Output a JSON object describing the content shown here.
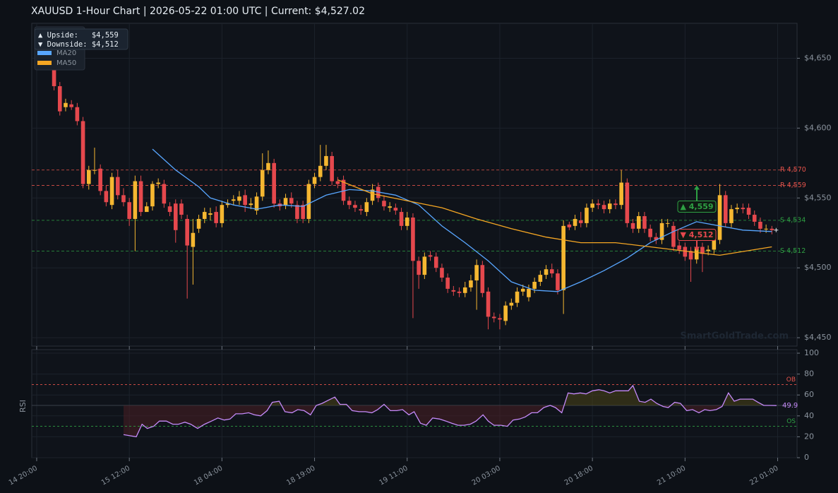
{
  "chart_data": [
    {
      "type": "candlestick",
      "title": "XAUUSD  1-Hour Chart  |  2026-05-22 01:00 UTC  |  Current: $4,527.02",
      "categories": [
        "14 20:00",
        null,
        null,
        null,
        null,
        null,
        null,
        null,
        null,
        null,
        null,
        null,
        null,
        null,
        null,
        null,
        "15 12:00",
        null,
        null,
        null,
        null,
        null,
        null,
        null,
        null,
        null,
        null,
        null,
        null,
        null,
        null,
        null,
        "18 04:00",
        null,
        null,
        null,
        null,
        null,
        null,
        null,
        null,
        null,
        null,
        null,
        null,
        null,
        null,
        null,
        "18 19:00",
        null,
        null,
        null,
        null,
        null,
        null,
        null,
        null,
        null,
        null,
        null,
        null,
        null,
        null,
        null,
        "19 11:00",
        null,
        null,
        null,
        null,
        null,
        null,
        null,
        null,
        null,
        null,
        null,
        null,
        null,
        null,
        null,
        "20 03:00",
        null,
        null,
        null,
        null,
        null,
        null,
        null,
        null,
        null,
        null,
        null,
        null,
        null,
        null,
        null,
        "20 18:00",
        null,
        null,
        null,
        null,
        null,
        null,
        null,
        null,
        null,
        null,
        null,
        null,
        null,
        null,
        null,
        "21 10:00",
        null,
        null,
        null,
        null,
        null,
        null,
        null,
        null,
        null,
        null,
        null,
        null,
        null,
        null,
        null,
        "22 01:00"
      ],
      "open": [
        null,
        null,
        null,
        4655,
        4630,
        4615,
        4617,
        4615,
        4605,
        4560,
        4570,
        4571,
        4555,
        4545,
        4565,
        4552,
        4547,
        4535,
        4562,
        4540,
        4544,
        4560,
        4560,
        4544,
        4546,
        4546,
        4535,
        4515,
        4528,
        4535,
        4538,
        4540,
        4532,
        4545,
        4548,
        4548,
        4552,
        4545,
        4541,
        4551,
        4570,
        4575,
        4546,
        4545,
        4550,
        4545,
        4545,
        4535,
        4560,
        4565,
        4573,
        4580,
        4562,
        4563,
        4548,
        4545,
        4542,
        4540,
        4548,
        4558,
        4548,
        4543,
        4543,
        4540,
        4530,
        4536,
        4505,
        4495,
        4509,
        4508,
        4500,
        4493,
        4484,
        4483,
        4482,
        4486,
        4491,
        4502,
        4483,
        4465,
        4464,
        4462,
        4473,
        4475,
        4483,
        4479,
        4485,
        4490,
        4495,
        4499,
        4496,
        4484,
        4531,
        4530,
        4534,
        4532,
        4543,
        4546,
        4545,
        4542,
        4546,
        4545,
        4561,
        4532,
        4528,
        4537,
        4528,
        4522,
        4520,
        4532,
        4530,
        4516,
        4515,
        4512,
        4506,
        4515,
        4512,
        4513,
        4520,
        4552,
        4532,
        4542,
        4543,
        4543,
        4538,
        4533,
        4528,
        4528,
        null
      ],
      "high": [
        null,
        null,
        null,
        4660,
        4633,
        4621,
        4620,
        4618,
        4608,
        4573,
        4586,
        4574,
        4559,
        4568,
        4570,
        4557,
        4550,
        4566,
        4566,
        4547,
        4562,
        4564,
        4563,
        4547,
        4549,
        4549,
        4538,
        4535,
        4538,
        4543,
        4543,
        4544,
        4548,
        4549,
        4552,
        4555,
        4556,
        4550,
        4554,
        4582,
        4584,
        4578,
        4549,
        4553,
        4554,
        4548,
        4548,
        4563,
        4568,
        4588,
        4588,
        4583,
        4565,
        4566,
        4551,
        4548,
        4545,
        4550,
        4560,
        4561,
        4552,
        4547,
        4546,
        4543,
        4540,
        4539,
        4508,
        4511,
        4512,
        4511,
        4503,
        4496,
        4487,
        4486,
        4490,
        4495,
        4506,
        4505,
        4486,
        4468,
        4467,
        4476,
        4478,
        4486,
        4488,
        4488,
        4493,
        4498,
        4502,
        4503,
        4499,
        4534,
        4533,
        4538,
        4540,
        4546,
        4549,
        4549,
        4548,
        4549,
        4549,
        4570,
        4564,
        4535,
        4540,
        4540,
        4531,
        4525,
        4535,
        4535,
        4533,
        4519,
        4518,
        4515,
        4518,
        4518,
        4516,
        4523,
        4560,
        4555,
        4545,
        4546,
        4546,
        4546,
        4541,
        4536,
        4531,
        4530,
        null
      ],
      "low": [
        null,
        null,
        null,
        4627,
        4609,
        4612,
        4613,
        4602,
        4557,
        4556,
        4567,
        4552,
        4544,
        4542,
        4549,
        4544,
        4530,
        4512,
        4537,
        4541,
        4541,
        4557,
        4543,
        4537,
        4518,
        4535,
        4478,
        4488,
        4525,
        4532,
        4534,
        4529,
        4529,
        4543,
        4545,
        4545,
        4540,
        4542,
        4538,
        4548,
        4567,
        4543,
        4541,
        4542,
        4543,
        4532,
        4532,
        4532,
        4557,
        4562,
        4570,
        4559,
        4557,
        4545,
        4542,
        4540,
        4538,
        4537,
        4545,
        4547,
        4541,
        4540,
        4538,
        4527,
        4527,
        4464,
        4485,
        4492,
        4505,
        4497,
        4490,
        4482,
        4480,
        4479,
        4479,
        4483,
        4470,
        4479,
        4456,
        4461,
        4456,
        4459,
        4470,
        4472,
        4480,
        4476,
        4482,
        4487,
        4492,
        4493,
        4481,
        4467,
        4527,
        4527,
        4529,
        4529,
        4540,
        4542,
        4539,
        4539,
        4542,
        4542,
        4529,
        4525,
        4525,
        4525,
        4519,
        4517,
        4517,
        4529,
        4512,
        4510,
        4505,
        4490,
        4503,
        4497,
        4509,
        4510,
        4517,
        4529,
        4529,
        4539,
        4539,
        4535,
        4530,
        4525,
        4525,
        4524,
        null
      ],
      "close": [
        null,
        null,
        null,
        4630,
        4612,
        4618,
        4615,
        4605,
        4560,
        4570,
        4570,
        4555,
        4547,
        4565,
        4552,
        4547,
        4535,
        4562,
        4540,
        4544,
        4560,
        4561,
        4546,
        4540,
        4527,
        4538,
        4516,
        4525,
        4535,
        4540,
        4539,
        4532,
        4545,
        4546,
        4549,
        4551,
        4545,
        4546,
        4551,
        4570,
        4575,
        4546,
        4544,
        4550,
        4546,
        4535,
        4535,
        4560,
        4565,
        4573,
        4580,
        4562,
        4560,
        4548,
        4545,
        4543,
        4541,
        4547,
        4556,
        4550,
        4544,
        4544,
        4541,
        4530,
        4536,
        4505,
        4495,
        4508,
        4508,
        4500,
        4493,
        4485,
        4483,
        4482,
        4486,
        4491,
        4502,
        4482,
        4465,
        4464,
        4463,
        4473,
        4475,
        4483,
        4485,
        4485,
        4490,
        4495,
        4499,
        4496,
        4484,
        4530,
        4529,
        4535,
        4532,
        4543,
        4546,
        4545,
        4542,
        4546,
        4545,
        4561,
        4532,
        4528,
        4537,
        4528,
        4522,
        4520,
        4532,
        4532,
        4515,
        4513,
        4508,
        4506,
        4515,
        4510,
        4513,
        4520,
        4552,
        4532,
        4542,
        4543,
        4542,
        4538,
        4533,
        4528,
        4528,
        4527,
        null
      ],
      "up_color": "#f5b731",
      "down_color": "#e5484d",
      "ylim": [
        4444,
        4675
      ],
      "yticks": [
        {
          "value": 4450,
          "label": "$4,450"
        },
        {
          "value": 4500,
          "label": "$4,500"
        },
        {
          "value": 4550,
          "label": "$4,550"
        },
        {
          "value": 4600,
          "label": "$4,600"
        },
        {
          "value": 4650,
          "label": "$4,650"
        }
      ],
      "grid": true,
      "series": [
        {
          "name": "MA20",
          "color": "#58a6ff",
          "x": [
            20,
            24,
            28,
            30,
            34,
            38,
            42,
            46,
            50,
            54,
            58,
            62,
            66,
            70,
            74,
            78,
            82,
            86,
            90,
            94,
            98,
            102,
            106,
            110,
            114,
            118,
            122,
            127
          ],
          "values": [
            4585,
            4570,
            4558,
            4550,
            4545,
            4542,
            4545,
            4544,
            4552,
            4556,
            4555,
            4552,
            4545,
            4530,
            4518,
            4505,
            4490,
            4484,
            4483,
            4490,
            4498,
            4507,
            4518,
            4526,
            4533,
            4530,
            4527,
            4526
          ]
        },
        {
          "name": "MA50",
          "color": "#f5a623",
          "x": [
            52,
            58,
            64,
            70,
            76,
            82,
            88,
            94,
            100,
            106,
            112,
            118,
            127
          ],
          "values": [
            4563,
            4553,
            4548,
            4543,
            4535,
            4528,
            4522,
            4518,
            4518,
            4515,
            4512,
            4509,
            4515
          ]
        }
      ],
      "levels": [
        {
          "label": "R 4,570",
          "value": 4570,
          "color": "#e5534b"
        },
        {
          "label": "R 4,559",
          "value": 4559,
          "color": "#e5534b"
        },
        {
          "label": "S 4,534",
          "value": 4534,
          "color": "#2ea043"
        },
        {
          "label": "S 4,512",
          "value": 4512,
          "color": "#2ea043"
        }
      ],
      "annotations": [
        {
          "label": "▲ 4,559",
          "value": 4559,
          "color": "#2ea043"
        },
        {
          "label": "▼ 4,512",
          "value": 4512,
          "color": "#e5484d"
        }
      ],
      "info": [
        "▲ Upside:   $4,559",
        "▼ Downside: $4,512"
      ],
      "watermark": "SmartGoldTrade.com"
    },
    {
      "type": "line",
      "ylabel": "RSI",
      "xlim": [
        -0.85,
        131.35
      ],
      "ylim": [
        0,
        103.4
      ],
      "yticks": [
        0,
        20,
        40,
        60,
        80,
        100
      ],
      "mid": 50,
      "levels": [
        {
          "label": "OB",
          "value": 70,
          "color": "#e5534b"
        },
        {
          "label": "OS",
          "value": 30,
          "color": "#2ea043"
        }
      ],
      "series": [
        {
          "name": "RSI",
          "color": "#c58af9",
          "x": [
            15.0,
            17.2,
            18.2,
            19.1,
            20.2,
            21.2,
            22.4,
            23.5,
            24.5,
            25.6,
            26.6,
            27.8,
            29.0,
            30.2,
            31.3,
            32.4,
            33.4,
            34.4,
            35.5,
            36.6,
            37.6,
            38.7,
            39.8,
            40.7,
            41.9,
            42.9,
            44.1,
            45.1,
            46.2,
            47.3,
            48.3,
            49.3,
            50.4,
            51.5,
            52.4,
            53.5,
            54.5,
            55.7,
            56.8,
            57.9,
            58.9,
            60.0,
            61.1,
            62.2,
            63.2,
            64.3,
            65.2,
            66.3,
            67.3,
            68.4,
            69.6,
            70.7,
            71.7,
            72.8,
            73.8,
            74.9,
            75.9,
            77.1,
            78.0,
            79.0,
            80.2,
            81.3,
            82.3,
            83.4,
            84.4,
            85.5,
            86.5,
            87.6,
            88.7,
            89.6,
            90.7,
            91.8,
            92.8,
            93.9,
            94.9,
            96.0,
            97.1,
            98.0,
            99.0,
            100.0,
            101.1,
            102.2,
            103.0,
            104.1,
            105.1,
            106.1,
            107.1,
            108.2,
            109.1,
            110.2,
            111.2,
            112.3,
            113.3,
            114.4,
            115.4,
            116.3,
            117.4,
            118.4,
            119.5,
            120.5,
            121.5,
            122.6,
            123.7,
            124.6,
            125.6,
            126.7,
            127.8
          ],
          "values": [
            22,
            20,
            32,
            28,
            30,
            35,
            35,
            32,
            32,
            34,
            32,
            28,
            32,
            35,
            38,
            36,
            37,
            42,
            42,
            43,
            41,
            40,
            45,
            53,
            54,
            44,
            43,
            46,
            45,
            41,
            50,
            52,
            55,
            58,
            51,
            51,
            45,
            44,
            44,
            43,
            46,
            51,
            45,
            45,
            46,
            41,
            44,
            33,
            31,
            38,
            37,
            35,
            33,
            31,
            31,
            32,
            35,
            41,
            35,
            31,
            31,
            30,
            36,
            37,
            39,
            43,
            43,
            48,
            50,
            48,
            43,
            62,
            61,
            62,
            61,
            64,
            65,
            64,
            62,
            64,
            64,
            64,
            69,
            54,
            53,
            56,
            52,
            49,
            48,
            53,
            52,
            45,
            46,
            43,
            46,
            45,
            46,
            49,
            62,
            54,
            56,
            56,
            56,
            53,
            50,
            50,
            49.9
          ]
        }
      ],
      "end_label": "49.9"
    }
  ]
}
